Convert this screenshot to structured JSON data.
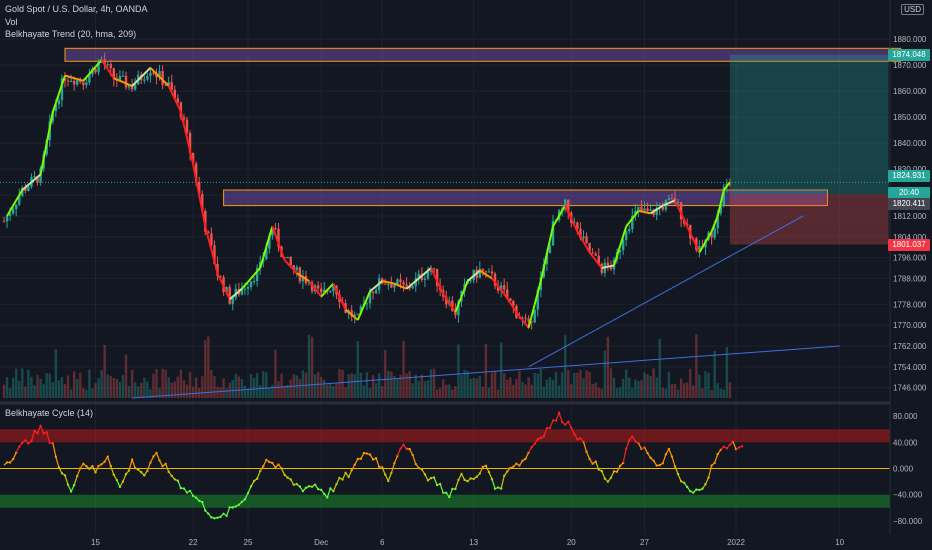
{
  "header": {
    "title": "Gold Spot / U.S. Dollar, 4h, OANDA",
    "vol": "Vol",
    "trend": "Belkhayate Trend (20, hma, 209)",
    "cycle": "Belkhayate Cycle (14)"
  },
  "currency": "USD",
  "price_tags": {
    "target": {
      "value": "1874.048",
      "color": "#26a69a"
    },
    "current": {
      "value": "1824.931",
      "color": "#26a69a"
    },
    "countdown": {
      "value": "20:40",
      "color": "#26a69a"
    },
    "entry": {
      "value": "1820.411",
      "color": "#434651"
    },
    "stop": {
      "value": "1801.037",
      "color": "#f23645"
    }
  },
  "colors": {
    "background": "#131722",
    "up": "#26a69a",
    "down": "#ef5350",
    "trend_line": "#3d6fdc",
    "zone": "#7e57c2",
    "zone_border": "#ff9800"
  },
  "chart_data": [
    {
      "type": "candlestick",
      "title": "Gold Spot / U.S. Dollar, 4h, OANDA",
      "ylim": [
        1742,
        1892
      ],
      "y_ticks": [
        1746,
        1754,
        1762,
        1770,
        1778,
        1788,
        1796,
        1804,
        1812,
        1820,
        1830,
        1840,
        1850,
        1860,
        1870,
        1880
      ],
      "y_tick_labels": [
        "1746.000",
        "1754.000",
        "1762.000",
        "1770.000",
        "1778.000",
        "1788.000",
        "1796.000",
        "1804.000",
        "1812.000",
        "1820.000",
        "1830.000",
        "1840.000",
        "1850.000",
        "1860.000",
        "1870.000",
        "1880.000"
      ],
      "x_ticks": [
        {
          "label": "15",
          "index": 15
        },
        {
          "label": "22",
          "index": 31
        },
        {
          "label": "25",
          "index": 40
        },
        {
          "label": "Dec",
          "index": 52
        },
        {
          "label": "6",
          "index": 62
        },
        {
          "label": "13",
          "index": 77
        },
        {
          "label": "20",
          "index": 93
        },
        {
          "label": "27",
          "index": 105
        },
        {
          "label": "2022",
          "index": 120
        },
        {
          "label": "10",
          "index": 137
        }
      ],
      "price_path": [
        [
          0,
          1810
        ],
        [
          3,
          1822
        ],
        [
          6,
          1828
        ],
        [
          8,
          1852
        ],
        [
          10,
          1866
        ],
        [
          13,
          1864
        ],
        [
          16,
          1872
        ],
        [
          18,
          1865
        ],
        [
          21,
          1862
        ],
        [
          24,
          1869
        ],
        [
          27,
          1862
        ],
        [
          29,
          1852
        ],
        [
          31,
          1832
        ],
        [
          33,
          1808
        ],
        [
          35,
          1790
        ],
        [
          37,
          1780
        ],
        [
          39,
          1784
        ],
        [
          42,
          1792
        ],
        [
          44,
          1808
        ],
        [
          46,
          1795
        ],
        [
          48,
          1790
        ],
        [
          50,
          1787
        ],
        [
          52,
          1781
        ],
        [
          54,
          1786
        ],
        [
          56,
          1776
        ],
        [
          58,
          1772
        ],
        [
          60,
          1783
        ],
        [
          62,
          1787
        ],
        [
          64,
          1786
        ],
        [
          66,
          1784
        ],
        [
          68,
          1788
        ],
        [
          70,
          1792
        ],
        [
          72,
          1782
        ],
        [
          74,
          1775
        ],
        [
          76,
          1787
        ],
        [
          78,
          1791
        ],
        [
          80,
          1788
        ],
        [
          82,
          1782
        ],
        [
          84,
          1775
        ],
        [
          86,
          1769
        ],
        [
          88,
          1787
        ],
        [
          90,
          1808
        ],
        [
          92,
          1816
        ],
        [
          94,
          1806
        ],
        [
          96,
          1798
        ],
        [
          98,
          1792
        ],
        [
          100,
          1793
        ],
        [
          102,
          1808
        ],
        [
          104,
          1814
        ],
        [
          106,
          1813
        ],
        [
          108,
          1816
        ],
        [
          110,
          1818
        ],
        [
          112,
          1808
        ],
        [
          114,
          1798
        ],
        [
          116,
          1806
        ],
        [
          117,
          1812
        ],
        [
          118,
          1822
        ],
        [
          119,
          1825
        ]
      ],
      "zones": [
        {
          "from_index": 10,
          "to_index": 147,
          "y_low": 1871.5,
          "y_high": 1876.5
        },
        {
          "from_index": 36,
          "to_index": 135,
          "y_low": 1816,
          "y_high": 1822
        }
      ],
      "trend_lines": [
        {
          "x1": 21,
          "y1": 1742,
          "x2": 137,
          "y2": 1762
        },
        {
          "x1": 86,
          "y1": 1754,
          "x2": 131,
          "y2": 1812
        }
      ],
      "long_position": {
        "from_index": 119,
        "to_index": 145,
        "entry": 1820.411,
        "target": 1874.048,
        "stop": 1801.037
      }
    },
    {
      "type": "line",
      "title": "Belkhayate Cycle (14)",
      "ylim": [
        -100,
        100
      ],
      "y_ticks": [
        80,
        40,
        0,
        -40,
        -80
      ],
      "y_tick_labels": [
        "80.000",
        "40.000",
        "0.000",
        "−40.000",
        "−80.000"
      ],
      "bands": [
        {
          "from": 40,
          "to": 60,
          "color": "red"
        },
        {
          "from": -60,
          "to": -40,
          "color": "green"
        }
      ],
      "series_path": [
        [
          0,
          5
        ],
        [
          3,
          35
        ],
        [
          6,
          60
        ],
        [
          8,
          40
        ],
        [
          9,
          0
        ],
        [
          11,
          -30
        ],
        [
          13,
          10
        ],
        [
          15,
          -5
        ],
        [
          17,
          20
        ],
        [
          19,
          -30
        ],
        [
          21,
          10
        ],
        [
          23,
          -10
        ],
        [
          25,
          20
        ],
        [
          27,
          -5
        ],
        [
          29,
          -25
        ],
        [
          31,
          -40
        ],
        [
          33,
          -60
        ],
        [
          35,
          -80
        ],
        [
          37,
          -65
        ],
        [
          39,
          -50
        ],
        [
          41,
          -20
        ],
        [
          43,
          15
        ],
        [
          45,
          0
        ],
        [
          47,
          -20
        ],
        [
          49,
          -30
        ],
        [
          51,
          -25
        ],
        [
          53,
          -40
        ],
        [
          55,
          -20
        ],
        [
          57,
          -5
        ],
        [
          59,
          25
        ],
        [
          61,
          15
        ],
        [
          63,
          -15
        ],
        [
          65,
          35
        ],
        [
          67,
          20
        ],
        [
          69,
          -10
        ],
        [
          71,
          -20
        ],
        [
          73,
          -45
        ],
        [
          75,
          -10
        ],
        [
          77,
          -20
        ],
        [
          79,
          5
        ],
        [
          81,
          -35
        ],
        [
          83,
          5
        ],
        [
          85,
          10
        ],
        [
          87,
          40
        ],
        [
          89,
          60
        ],
        [
          91,
          80
        ],
        [
          93,
          65
        ],
        [
          95,
          35
        ],
        [
          97,
          5
        ],
        [
          99,
          -20
        ],
        [
          101,
          0
        ],
        [
          103,
          50
        ],
        [
          105,
          30
        ],
        [
          107,
          0
        ],
        [
          109,
          25
        ],
        [
          111,
          -20
        ],
        [
          113,
          -40
        ],
        [
          115,
          -20
        ],
        [
          117,
          20
        ],
        [
          119,
          40
        ],
        [
          121,
          30
        ]
      ]
    }
  ]
}
